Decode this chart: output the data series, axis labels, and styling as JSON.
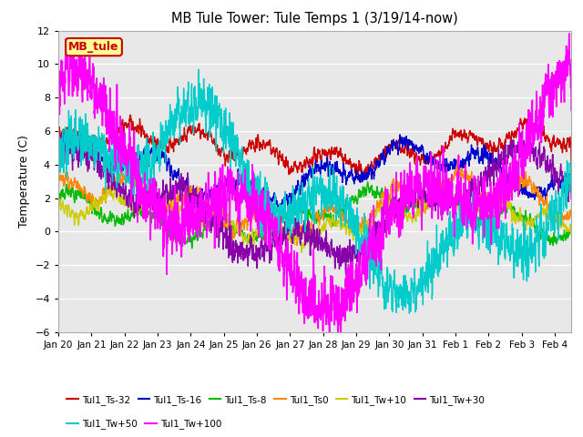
{
  "title": "MB Tule Tower: Tule Temps 1 (3/19/14-now)",
  "ylabel": "Temperature (C)",
  "ylim": [
    -6,
    12
  ],
  "yticks": [
    -6,
    -4,
    -2,
    0,
    2,
    4,
    6,
    8,
    10,
    12
  ],
  "xlim": [
    0,
    15.5
  ],
  "xtick_labels": [
    "Jan 20",
    "Jan 21",
    "Jan 22",
    "Jan 23",
    "Jan 24",
    "Jan 25",
    "Jan 26",
    "Jan 27",
    "Jan 28",
    "Jan 29",
    "Jan 30",
    "Jan 31",
    "Feb 1",
    "Feb 2",
    "Feb 3",
    "Feb 4"
  ],
  "xtick_positions": [
    0,
    1,
    2,
    3,
    4,
    5,
    6,
    7,
    8,
    9,
    10,
    11,
    12,
    13,
    14,
    15
  ],
  "series_order": [
    "Tul1_Ts-32",
    "Tul1_Ts-16",
    "Tul1_Ts-8",
    "Tul1_Ts0",
    "Tul1_Tw+10",
    "Tul1_Tw+30",
    "Tul1_Tw+50",
    "Tul1_Tw+100"
  ],
  "series_colors": [
    "#cc0000",
    "#0000cc",
    "#00bb00",
    "#ff8800",
    "#cccc00",
    "#8800aa",
    "#00cccc",
    "#ff00ff"
  ],
  "series_lw": [
    1.0,
    1.0,
    1.0,
    1.0,
    1.0,
    1.0,
    1.0,
    1.2
  ],
  "annotation_box": {
    "text": "MB_tule",
    "facecolor": "#ffff99",
    "edgecolor": "#cc0000",
    "textcolor": "#cc0000"
  },
  "plot_bg": "#e8e8e8",
  "fig_bg": "#ffffff"
}
